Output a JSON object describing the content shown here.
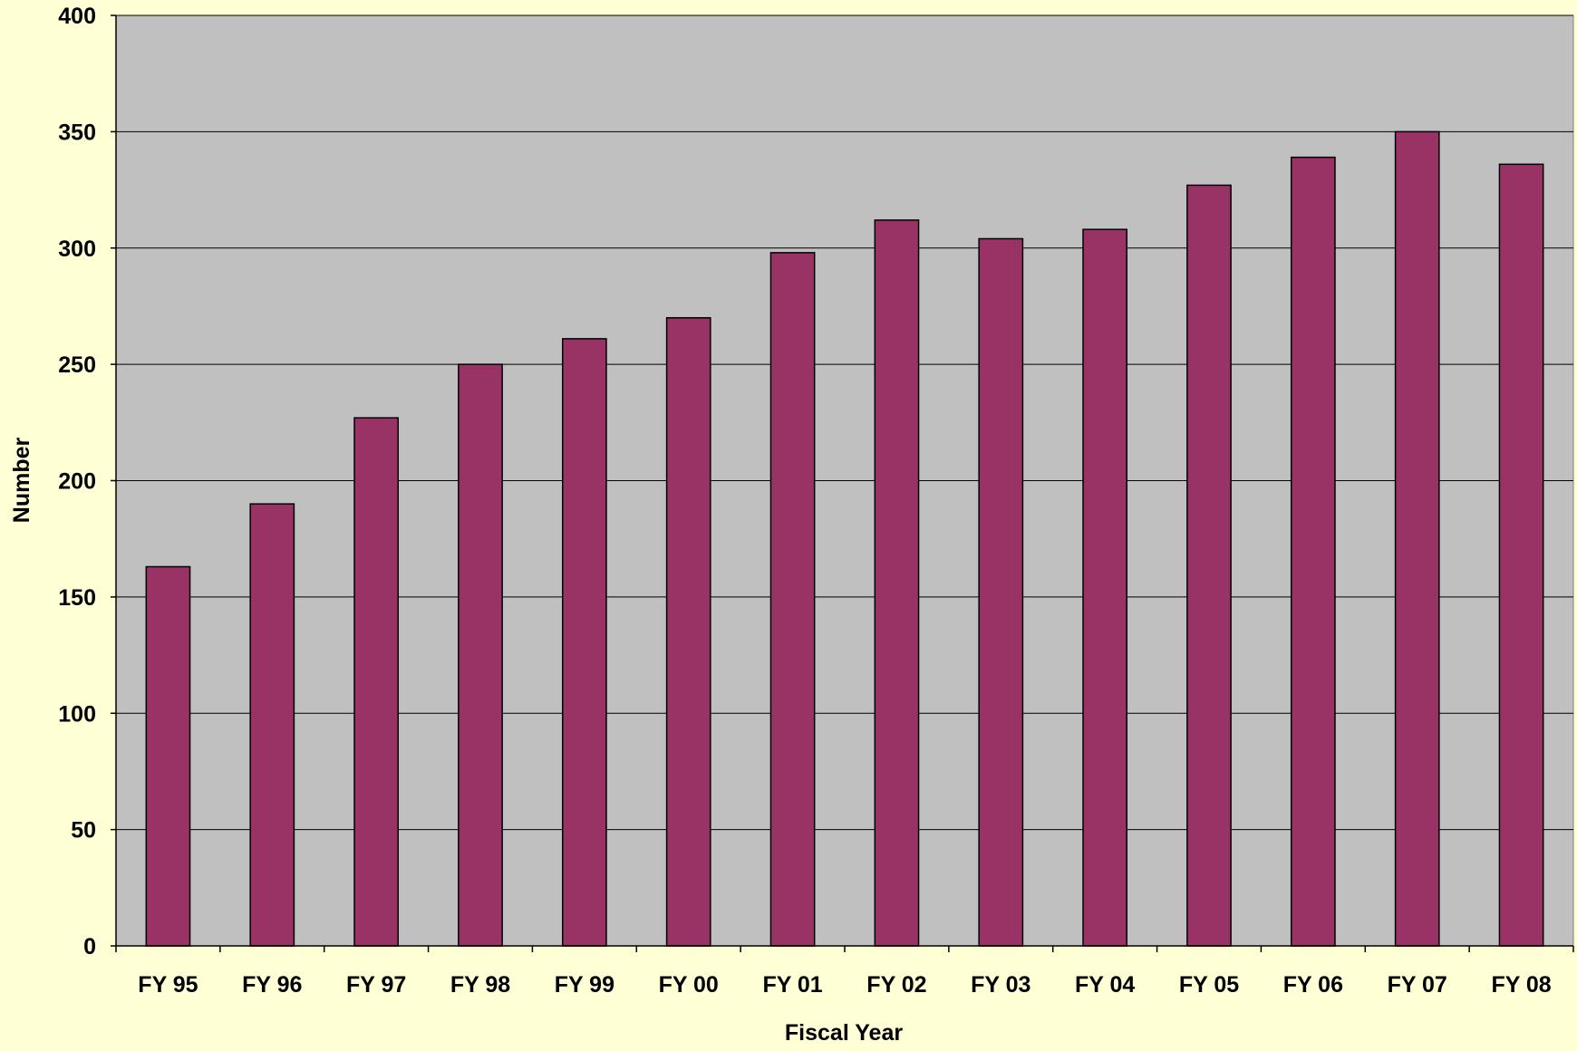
{
  "chart_data": {
    "type": "bar",
    "title": "",
    "xlabel": "Fiscal Year",
    "ylabel": "Number",
    "categories": [
      "FY 95",
      "FY 96",
      "FY 97",
      "FY 98",
      "FY 99",
      "FY 00",
      "FY 01",
      "FY 02",
      "FY 03",
      "FY 04",
      "FY 05",
      "FY 06",
      "FY 07",
      "FY 08"
    ],
    "values": [
      163,
      190,
      227,
      250,
      261,
      270,
      298,
      312,
      304,
      308,
      327,
      339,
      350,
      336
    ],
    "ylim": [
      0,
      400
    ],
    "yticks": [
      "0",
      "50",
      "100",
      "150",
      "200",
      "250",
      "300",
      "350",
      "400"
    ],
    "grid": true,
    "legend": "none",
    "colors": {
      "page_background": "#FFFFD6",
      "plot_background": "#C0C0C0",
      "bar_fill": "#993366",
      "bar_stroke": "#000000",
      "gridline": "#000000"
    }
  }
}
